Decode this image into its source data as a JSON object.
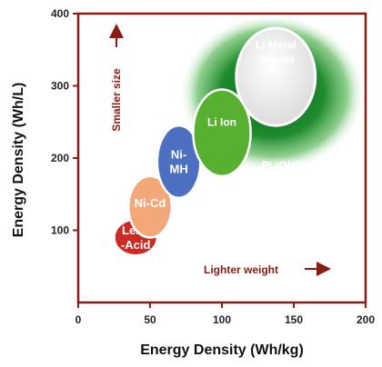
{
  "chart_data": {
    "type": "scatter",
    "title": "",
    "xlabel": "Energy Density  (Wh/kg)",
    "ylabel": "Energy Density  (Wh/L)",
    "xlim": [
      0,
      200
    ],
    "ylim": [
      0,
      400
    ],
    "x_ticks": [
      0,
      50,
      100,
      150,
      200
    ],
    "y_ticks": [
      100,
      200,
      300,
      400
    ],
    "grid": false,
    "bubbles": [
      {
        "name": "Lead-Acid",
        "label_lines": [
          "Lead",
          "-Acid"
        ],
        "x_range": [
          25,
          55
        ],
        "y_range": [
          65,
          115
        ],
        "color": "#cc2a22"
      },
      {
        "name": "Ni-Cd",
        "label_lines": [
          "Ni-Cd"
        ],
        "x_range": [
          35,
          65
        ],
        "y_range": [
          90,
          175
        ],
        "color": "#f3a87a"
      },
      {
        "name": "Ni-MH",
        "label_lines": [
          "Ni-",
          "MH"
        ],
        "x_range": [
          55,
          85
        ],
        "y_range": [
          145,
          245
        ],
        "color": "#4d6fc0"
      },
      {
        "name": "Li Ion",
        "label_lines": [
          "Li Ion"
        ],
        "x_range": [
          80,
          120
        ],
        "y_range": [
          175,
          295
        ],
        "color": "#58b030"
      },
      {
        "name": "PLiON™",
        "label_lines": [
          "PLiON™"
        ],
        "x_range": [
          70,
          200
        ],
        "y_range": [
          180,
          400
        ],
        "color": "#1a7a2a"
      },
      {
        "name": "Li Metal",
        "label_lines": [
          "Li Metal",
          "(Unsafe)"
        ],
        "x_range": [
          110,
          165
        ],
        "y_range": [
          245,
          380
        ],
        "color": "#ececec"
      }
    ],
    "annotations": [
      {
        "text": "Smaller size",
        "direction": "up"
      },
      {
        "text": "Lighter weight",
        "direction": "right"
      }
    ],
    "colors": {
      "frame": "#8b1a10",
      "annotation": "#8b1a10"
    }
  }
}
